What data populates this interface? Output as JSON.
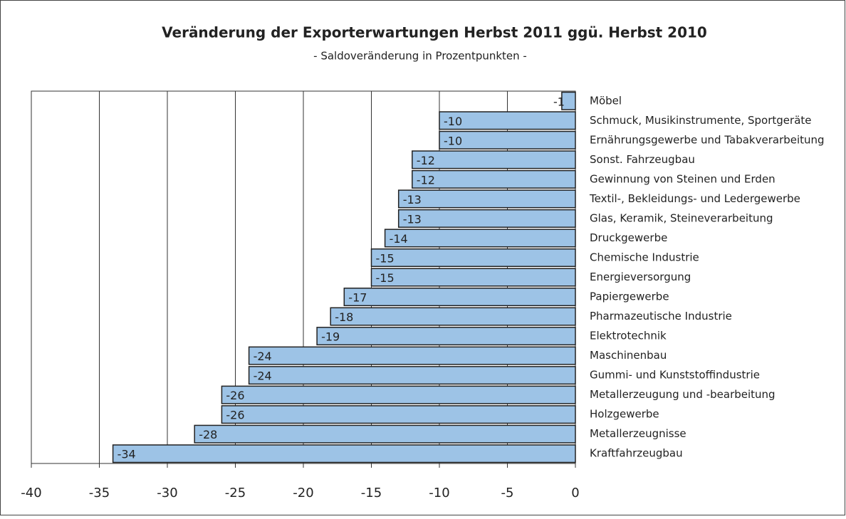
{
  "chart_data": {
    "type": "bar",
    "orientation": "horizontal",
    "title": "Veränderung der Exporterwartungen Herbst 2011 ggü. Herbst 2010",
    "subtitle": "- Saldoveränderung in Prozentpunkten -",
    "categories": [
      "Möbel",
      "Schmuck, Musikinstrumente, Sportgeräte",
      "Ernährungsgewerbe und Tabakverarbeitung",
      "Sonst. Fahrzeugbau",
      "Gewinnung von Steinen und Erden",
      "Textil-, Bekleidungs- und Ledergewerbe",
      "Glas, Keramik, Steineverarbeitung",
      "Druckgewerbe",
      "Chemische Industrie",
      "Energieversorgung",
      "Papiergewerbe",
      "Pharmazeutische Industrie",
      "Elektrotechnik",
      "Maschinenbau",
      "Gummi- und Kunststoffindustrie",
      "Metallerzeugung und -bearbeitung",
      "Holzgewerbe",
      "Metallerzeugnisse",
      "Kraftfahrzeugbau"
    ],
    "values": [
      -1,
      -10,
      -10,
      -12,
      -12,
      -13,
      -13,
      -14,
      -15,
      -15,
      -17,
      -18,
      -19,
      -24,
      -24,
      -26,
      -26,
      -28,
      -34
    ],
    "color": "#9dc3e6",
    "xlim": [
      -40,
      0
    ],
    "xticks": [
      -40,
      -35,
      -30,
      -25,
      -20,
      -15,
      -10,
      -5,
      0
    ],
    "grid": true
  }
}
